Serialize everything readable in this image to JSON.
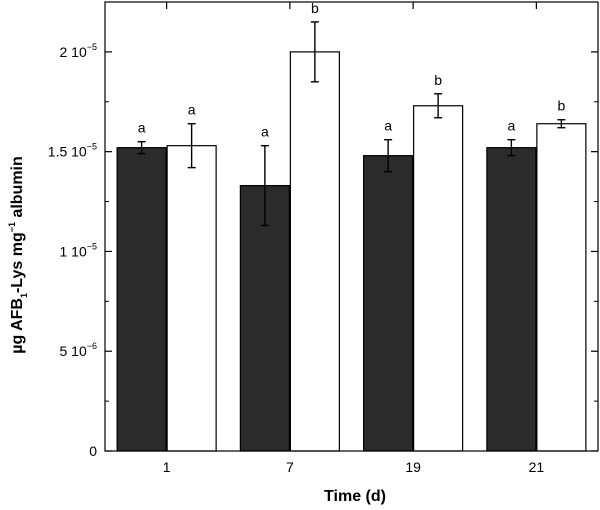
{
  "chart_data": {
    "type": "bar",
    "title": "",
    "xlabel": "Time (d)",
    "ylabel": {
      "main": "µg AFB",
      "sub": "1",
      "mid": "-Lys mg",
      "sup": "−1",
      "tail": " albumin"
    },
    "ylim": [
      0,
      2.25e-05
    ],
    "y_ticks": [
      {
        "value": 0,
        "label": "0",
        "exp": ""
      },
      {
        "value": 5e-06,
        "label": "5 10",
        "exp": "−6"
      },
      {
        "value": 1e-05,
        "label": "1 10",
        "exp": "−5"
      },
      {
        "value": 1.5e-05,
        "label": "1.5 10",
        "exp": "−5"
      },
      {
        "value": 2e-05,
        "label": "2 10",
        "exp": "−5"
      }
    ],
    "categories": [
      "1",
      "7",
      "19",
      "21"
    ],
    "series": [
      {
        "fill": "#2b2b2b",
        "values": [
          1.52e-05,
          1.33e-05,
          1.48e-05,
          1.52e-05
        ],
        "errors": [
          3e-07,
          2e-06,
          8e-07,
          4e-07
        ],
        "letters": [
          "a",
          "a",
          "a",
          "a"
        ]
      },
      {
        "fill": "#ffffff",
        "values": [
          1.53e-05,
          2e-05,
          1.73e-05,
          1.64e-05
        ],
        "errors": [
          1.1e-06,
          1.5e-06,
          6e-07,
          2e-07
        ],
        "letters": [
          "a",
          "b",
          "b",
          "b"
        ]
      }
    ],
    "grid": false,
    "legend": "none"
  }
}
